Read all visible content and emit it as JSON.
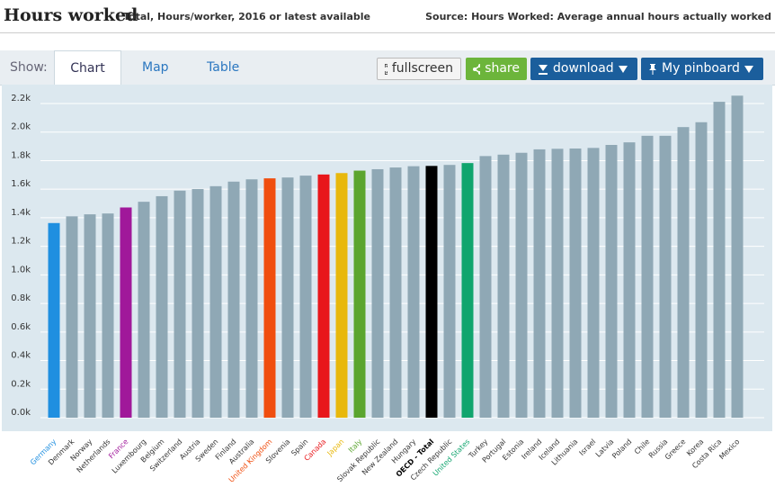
{
  "chart_data": {
    "type": "bar",
    "title": "Hours worked",
    "subtitle": "Total, Hours/worker, 2016 or latest available",
    "source": "Source: Hours Worked: Average annual hours actually worked",
    "categories": [
      "Germany",
      "Denmark",
      "Norway",
      "Netherlands",
      "France",
      "Luxembourg",
      "Belgium",
      "Switzerland",
      "Austria",
      "Sweden",
      "Finland",
      "Australia",
      "United Kingdom",
      "Slovenia",
      "Spain",
      "Canada",
      "Japan",
      "Italy",
      "Slovak Republic",
      "New Zealand",
      "Hungary",
      "OECD - Total",
      "Czech Republic",
      "United States",
      "Turkey",
      "Portugal",
      "Estonia",
      "Ireland",
      "Iceland",
      "Lithuania",
      "Israel",
      "Latvia",
      "Poland",
      "Chile",
      "Russia",
      "Greece",
      "Korea",
      "Costa Rica",
      "Mexico"
    ],
    "values": [
      1363,
      1410,
      1424,
      1430,
      1472,
      1512,
      1551,
      1590,
      1601,
      1621,
      1653,
      1669,
      1676,
      1682,
      1695,
      1703,
      1713,
      1730,
      1740,
      1752,
      1761,
      1763,
      1770,
      1783,
      1832,
      1842,
      1855,
      1879,
      1883,
      1885,
      1889,
      1910,
      1928,
      1974,
      1974,
      2035,
      2069,
      2212,
      2255
    ],
    "colors": [
      "#1f8fe0",
      "#8fa8b5",
      "#8fa8b5",
      "#8fa8b5",
      "#a0189a",
      "#8fa8b5",
      "#8fa8b5",
      "#8fa8b5",
      "#8fa8b5",
      "#8fa8b5",
      "#8fa8b5",
      "#8fa8b5",
      "#f04e0f",
      "#8fa8b5",
      "#8fa8b5",
      "#e8171b",
      "#e8b80c",
      "#5ba52f",
      "#8fa8b5",
      "#8fa8b5",
      "#8fa8b5",
      "#000000",
      "#8fa8b5",
      "#10a56e",
      "#8fa8b5",
      "#8fa8b5",
      "#8fa8b5",
      "#8fa8b5",
      "#8fa8b5",
      "#8fa8b5",
      "#8fa8b5",
      "#8fa8b5",
      "#8fa8b5",
      "#8fa8b5",
      "#8fa8b5",
      "#8fa8b5",
      "#8fa8b5",
      "#8fa8b5",
      "#8fa8b5"
    ],
    "ylim": [
      0,
      2200
    ],
    "yticks": [
      {
        "value": 0,
        "label": "0.0k"
      },
      {
        "value": 200,
        "label": "0.2k"
      },
      {
        "value": 400,
        "label": "0.4k"
      },
      {
        "value": 600,
        "label": "0.6k"
      },
      {
        "value": 800,
        "label": "0.8k"
      },
      {
        "value": 1000,
        "label": "1.0k"
      },
      {
        "value": 1200,
        "label": "1.2k"
      },
      {
        "value": 1400,
        "label": "1.4k"
      },
      {
        "value": 1600,
        "label": "1.6k"
      },
      {
        "value": 1800,
        "label": "1.8k"
      },
      {
        "value": 2000,
        "label": "2.0k"
      },
      {
        "value": 2200,
        "label": "2.2k"
      }
    ],
    "grid": true
  },
  "ui": {
    "show": "Show:",
    "tabs": [
      "Chart",
      "Map",
      "Table"
    ],
    "buttons": [
      "fullscreen",
      "share",
      "download",
      "My pinboard"
    ]
  }
}
